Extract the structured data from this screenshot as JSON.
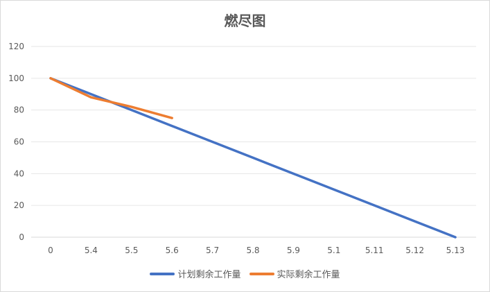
{
  "chart_data": {
    "type": "line",
    "title": "燃尽图",
    "categories": [
      "0",
      "5.4",
      "5.5",
      "5.6",
      "5.7",
      "5.8",
      "5.9",
      "5.1",
      "5.11",
      "5.12",
      "5.13"
    ],
    "series": [
      {
        "name": "计划剩余工作量",
        "color": "#4472C4",
        "values": [
          100,
          90,
          80,
          70,
          60,
          50,
          40,
          30,
          20,
          10,
          0
        ]
      },
      {
        "name": "实际剩余工作量",
        "color": "#ED7D31",
        "values": [
          100,
          88,
          82,
          75,
          null,
          null,
          null,
          null,
          null,
          null,
          null
        ]
      }
    ],
    "ylim": [
      0,
      120
    ],
    "yticks": [
      0,
      20,
      40,
      60,
      80,
      100,
      120
    ],
    "xlabel": "",
    "ylabel": "",
    "grid": true,
    "legend": "bottom"
  }
}
